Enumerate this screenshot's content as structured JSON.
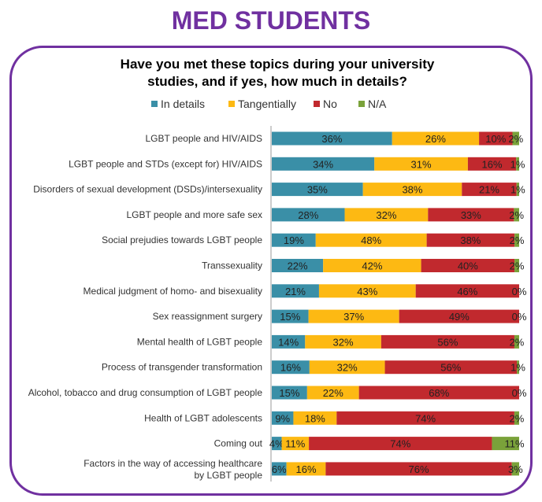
{
  "page_title": "MED STUDENTS",
  "colors": {
    "title": "#7030a0",
    "frame": "#7030a0"
  },
  "chart_data": {
    "type": "bar",
    "orientation": "horizontal-stacked-100",
    "title_lines": [
      "Have you met these topics during your university",
      "studies, and if yes, how much in details?"
    ],
    "legend_position": "top",
    "categories": [
      "LGBT people and HIV/AIDS",
      "LGBT people and STDs (except for) HIV/AIDS",
      "Disorders of sexual development (DSDs)/intersexuality",
      "LGBT people and more safe sex",
      "Social prejudies towards LGBT people",
      "Transsexuality",
      "Medical judgment of homo- and bisexuality",
      "Sex reassignment surgery",
      "Mental health of LGBT people",
      "Process of transgender transformation",
      "Alcohol, tobacco and drug consumption of LGBT people",
      "Health of LGBT adolescents",
      "Coming out",
      [
        "Factors in the way of accessing healthcare",
        "by LGBT people"
      ]
    ],
    "series": [
      {
        "name": "In details",
        "color": "#3a8fa7",
        "values": [
          36,
          34,
          35,
          28,
          19,
          22,
          21,
          15,
          14,
          16,
          15,
          9,
          4,
          6
        ]
      },
      {
        "name": "Tangentially",
        "color": "#fdb913",
        "values": [
          26,
          31,
          38,
          32,
          48,
          42,
          43,
          37,
          32,
          32,
          22,
          18,
          11,
          16
        ]
      },
      {
        "name": "No",
        "color": "#c1292e",
        "values": [
          10,
          16,
          21,
          33,
          38,
          40,
          46,
          49,
          56,
          56,
          68,
          74,
          74,
          76
        ]
      },
      {
        "name": "N/A",
        "color": "#7aa23a",
        "values": [
          2,
          1,
          1,
          2,
          2,
          2,
          0,
          0,
          2,
          1,
          0,
          2,
          11,
          3
        ]
      }
    ],
    "value_format": "{v}%"
  }
}
